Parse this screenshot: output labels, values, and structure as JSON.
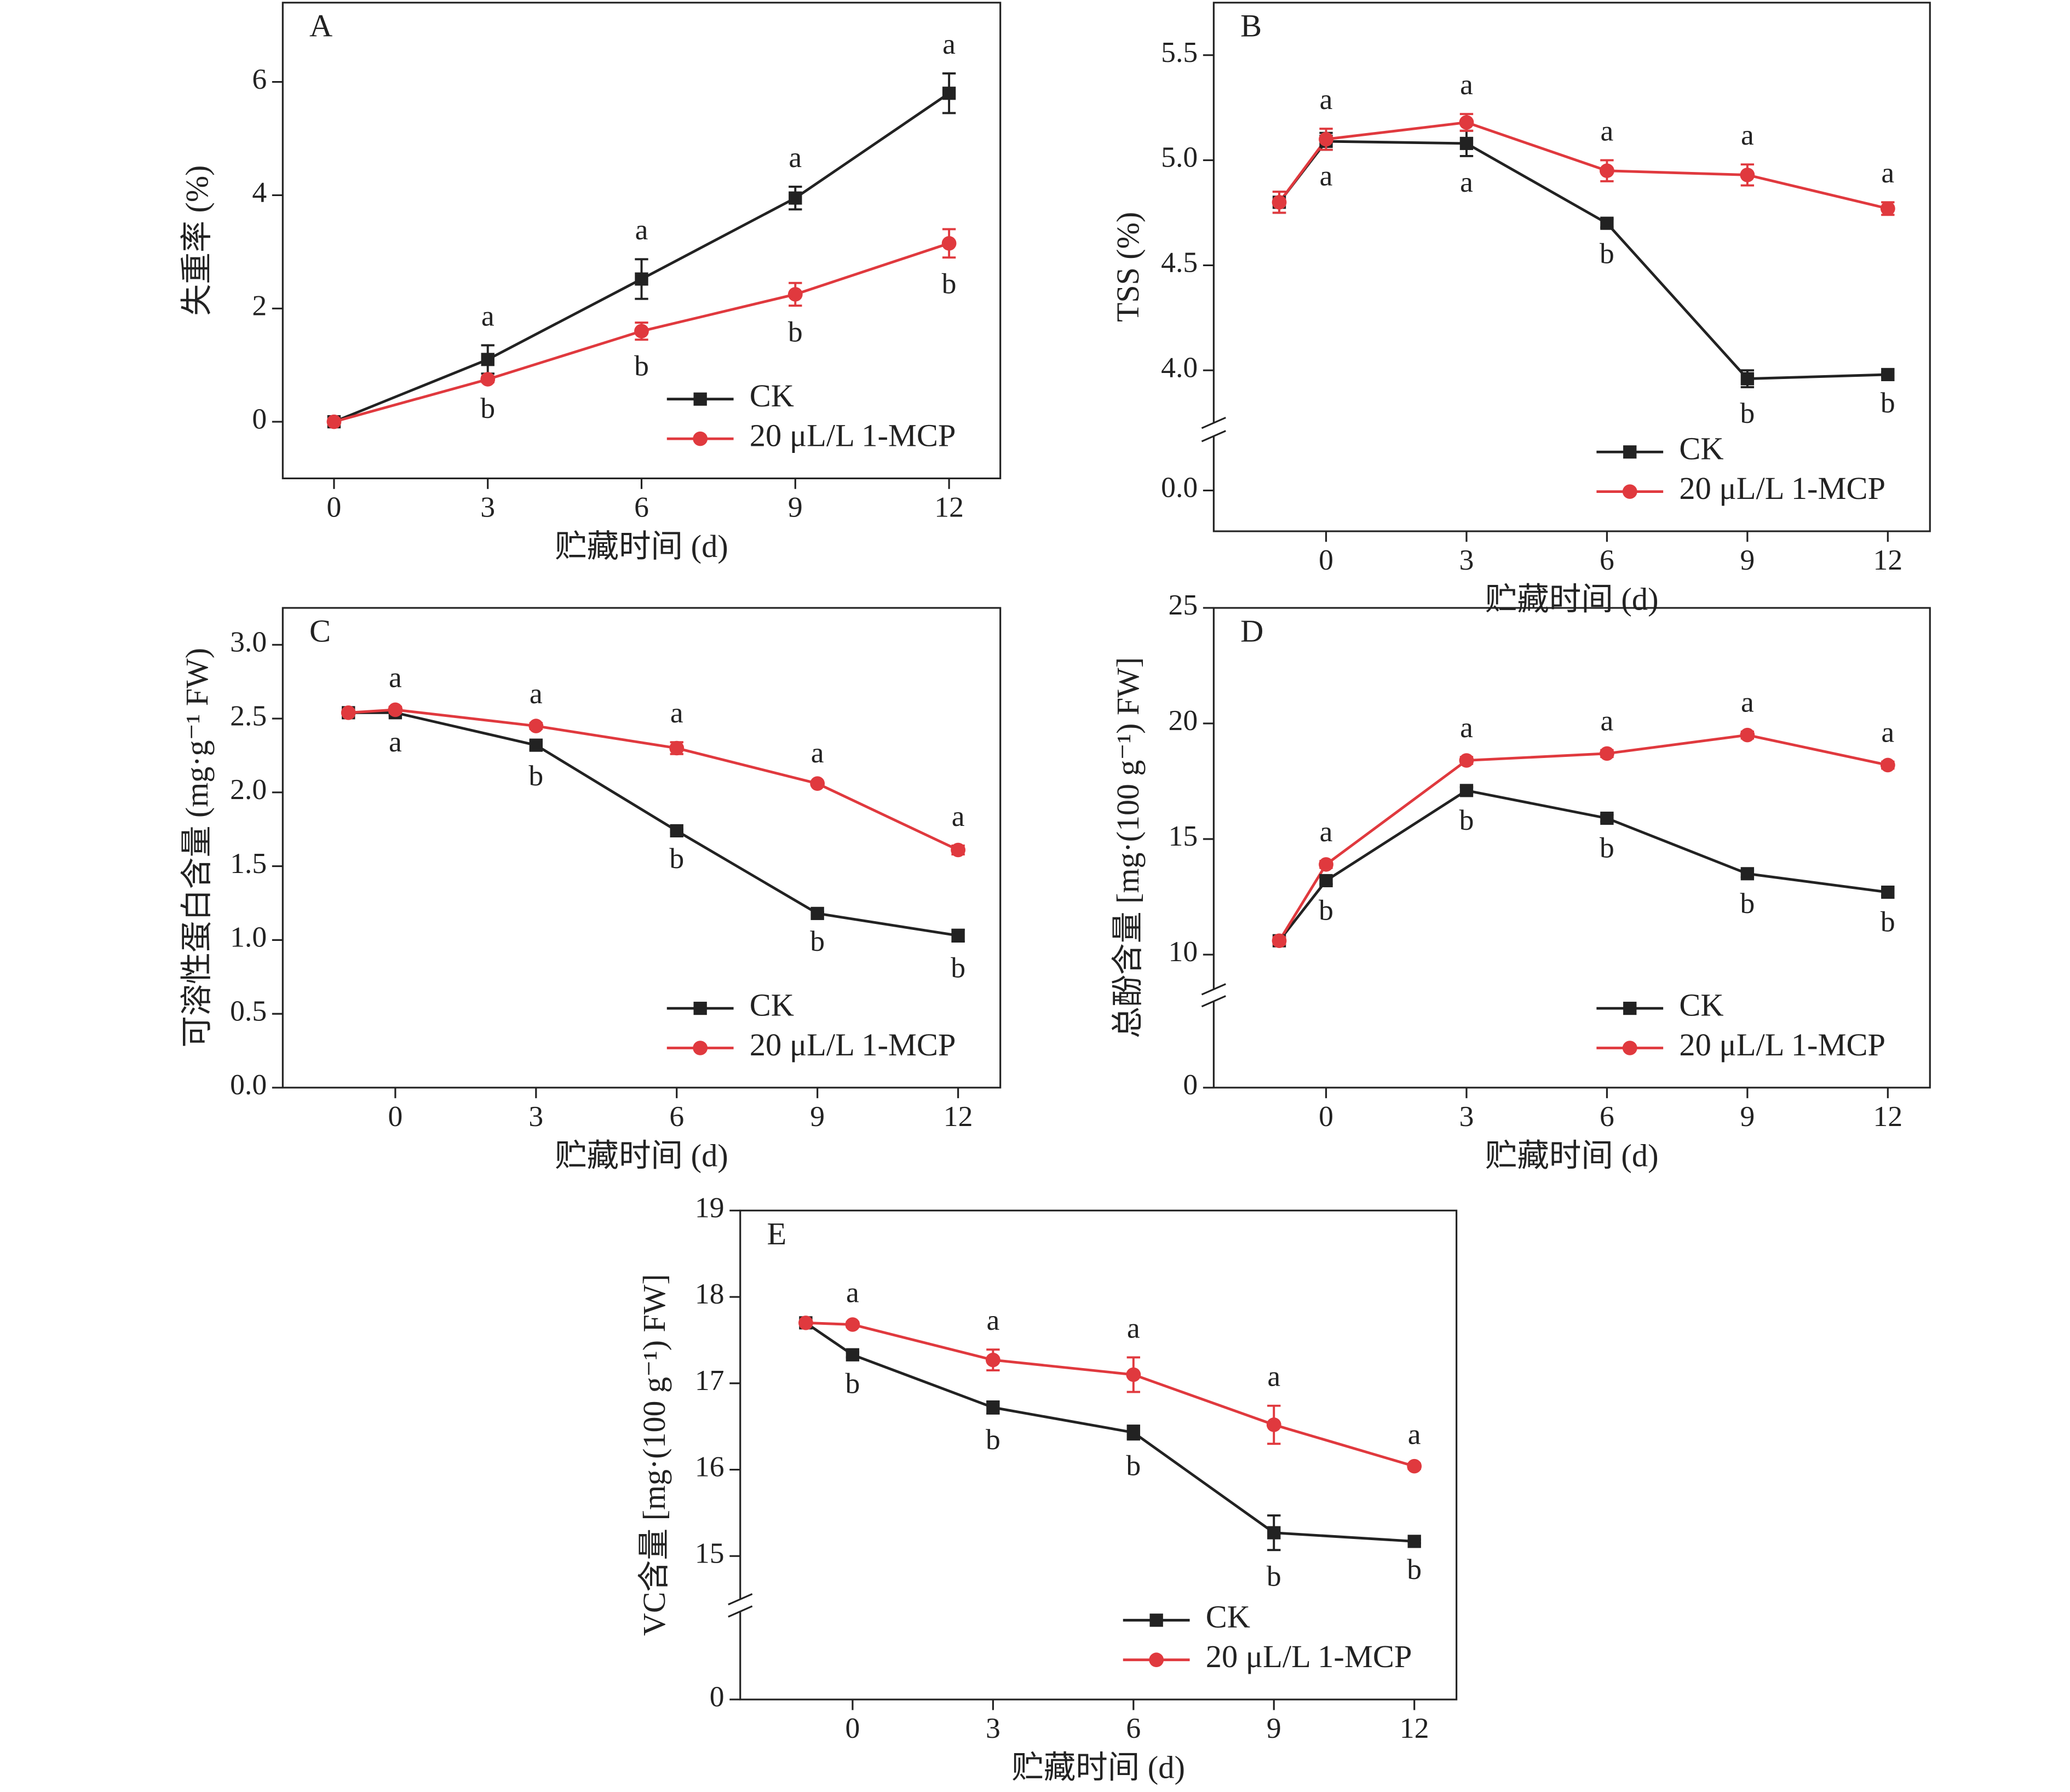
{
  "chart_data": [
    {
      "type": "line",
      "label": "A",
      "x_label": "贮藏时间 (d)",
      "y_label": "失重率 (%)",
      "x": [
        0,
        3,
        6,
        9,
        12
      ],
      "xlim": [
        -1,
        13
      ],
      "xticks": [
        0,
        3,
        6,
        9,
        12
      ],
      "ylim": [
        -1,
        7.4
      ],
      "yticks": [
        0,
        2,
        4,
        6
      ],
      "legend": "lower right",
      "series": [
        {
          "name": "CK",
          "color": "#222222",
          "marker": "square",
          "values": [
            0,
            1.1,
            2.52,
            3.95,
            5.8
          ],
          "errors": [
            0.03,
            0.25,
            0.35,
            0.2,
            0.35
          ],
          "letters": [
            null,
            "a",
            "a",
            "a",
            "a"
          ]
        },
        {
          "name": "20 μL/L 1-MCP",
          "color": "#e0393e",
          "marker": "circle",
          "values": [
            0,
            0.75,
            1.6,
            2.25,
            3.15
          ],
          "errors": [
            0.03,
            0.05,
            0.15,
            0.2,
            0.25
          ],
          "letters": [
            null,
            "b",
            "b",
            "b",
            "b"
          ]
        }
      ]
    },
    {
      "type": "line",
      "label": "B",
      "x_label": "贮藏时间 (d)",
      "y_label": "TSS (%)",
      "x": [
        -1,
        0,
        3,
        6,
        9,
        12
      ],
      "xlim": [
        -2.4,
        12.9
      ],
      "xticks": [
        0,
        3,
        6,
        9,
        12
      ],
      "ylim": [
        -0.3,
        5.75
      ],
      "ybreak": [
        0.4,
        3.75
      ],
      "yticks": [
        {
          "value": 0,
          "label": "0.0"
        },
        {
          "value": 4,
          "label": "4.0"
        },
        4.5,
        {
          "value": 5,
          "label": "5.0"
        },
        5.5
      ],
      "legend": "lower right",
      "series": [
        {
          "name": "CK",
          "color": "#222222",
          "marker": "square",
          "values": [
            4.8,
            5.09,
            5.08,
            4.7,
            3.96,
            3.98
          ],
          "errors": [
            0.05,
            0.04,
            0.06,
            0.02,
            0.04,
            0.01
          ],
          "letters": [
            null,
            "a",
            "a",
            "b",
            "b",
            "b"
          ]
        },
        {
          "name": "20 μL/L 1-MCP",
          "color": "#e0393e",
          "marker": "circle",
          "values": [
            4.8,
            5.1,
            5.18,
            4.95,
            4.93,
            4.77
          ],
          "errors": [
            0.05,
            0.05,
            0.04,
            0.05,
            0.05,
            0.03
          ],
          "letters": [
            null,
            "a",
            "a",
            "a",
            "a",
            "a"
          ]
        }
      ]
    },
    {
      "type": "line",
      "label": "C",
      "x_label": "贮藏时间 (d)",
      "y_label": "可溶性蛋白含量 (mg·g⁻¹ FW)",
      "x": [
        -1,
        0,
        3,
        6,
        9,
        12
      ],
      "xlim": [
        -2.4,
        12.9
      ],
      "xticks": [
        0,
        3,
        6,
        9,
        12
      ],
      "ylim": [
        0,
        3.25
      ],
      "yticks": [
        {
          "value": 0,
          "label": "0.0"
        },
        0.5,
        {
          "value": 1,
          "label": "1.0"
        },
        1.5,
        {
          "value": 2,
          "label": "2.0"
        },
        2.5,
        {
          "value": 3,
          "label": "3.0"
        }
      ],
      "legend": "lower right",
      "series": [
        {
          "name": "CK",
          "color": "#222222",
          "marker": "square",
          "values": [
            2.54,
            2.54,
            2.32,
            1.74,
            1.18,
            1.03
          ],
          "errors": [
            0.01,
            0.02,
            0.03,
            0.01,
            0.01,
            0.04
          ],
          "letters": [
            null,
            "a",
            "b",
            "b",
            "b",
            "b"
          ]
        },
        {
          "name": "20 μL/L 1-MCP",
          "color": "#e0393e",
          "marker": "circle",
          "values": [
            2.54,
            2.56,
            2.45,
            2.3,
            2.06,
            1.61
          ],
          "errors": [
            0.01,
            0.02,
            0.02,
            0.04,
            0.01,
            0.03
          ],
          "letters": [
            null,
            "a",
            "a",
            "a",
            "a",
            "a"
          ]
        }
      ]
    },
    {
      "type": "line",
      "label": "D",
      "x_label": "贮藏时间 (d)",
      "y_label": "总酚含量 [mg·(100 g⁻¹) FW]",
      "x": [
        -1,
        0,
        3,
        6,
        9,
        12
      ],
      "xlim": [
        -2.4,
        12.9
      ],
      "xticks": [
        0,
        3,
        6,
        9,
        12
      ],
      "ylim": [
        0,
        25
      ],
      "ybreak": [
        1,
        8.5
      ],
      "yticks": [
        0,
        10,
        15,
        20,
        25
      ],
      "legend": "lower right",
      "series": [
        {
          "name": "CK",
          "color": "#222222",
          "marker": "square",
          "values": [
            10.6,
            13.2,
            17.1,
            15.9,
            13.5,
            12.7
          ],
          "errors": [
            0.15,
            0.15,
            0.15,
            0.15,
            0.15,
            0.15
          ],
          "letters": [
            null,
            "b",
            "b",
            "b",
            "b",
            "b"
          ]
        },
        {
          "name": "20 μL/L 1-MCP",
          "color": "#e0393e",
          "marker": "circle",
          "values": [
            10.6,
            13.9,
            18.4,
            18.7,
            19.5,
            18.2
          ],
          "errors": [
            0.15,
            0.15,
            0.15,
            0.15,
            0.15,
            0.15
          ],
          "letters": [
            null,
            "a",
            "a",
            "a",
            "a",
            "a"
          ]
        }
      ]
    },
    {
      "type": "line",
      "label": "E",
      "x_label": "贮藏时间 (d)",
      "y_label": "VC含量 [mg·(100 g⁻¹) FW]",
      "x": [
        -1,
        0,
        3,
        6,
        9,
        12
      ],
      "xlim": [
        -2.4,
        12.9
      ],
      "xticks": [
        0,
        3,
        6,
        9,
        12
      ],
      "ylim": [
        0,
        19
      ],
      "ybreak": [
        1,
        14.5
      ],
      "yticks": [
        0,
        15,
        16,
        17,
        18,
        19
      ],
      "legend": "lower right",
      "series": [
        {
          "name": "CK",
          "color": "#222222",
          "marker": "square",
          "values": [
            17.7,
            17.33,
            16.72,
            16.43,
            15.27,
            15.17
          ],
          "errors": [
            0.02,
            0.03,
            0.07,
            0.08,
            0.2,
            0.02
          ],
          "letters": [
            null,
            "b",
            "b",
            "b",
            "b",
            "b"
          ]
        },
        {
          "name": "20 μL/L 1-MCP",
          "color": "#e0393e",
          "marker": "circle",
          "values": [
            17.7,
            17.68,
            17.27,
            17.1,
            16.52,
            16.04
          ],
          "errors": [
            0.02,
            0.03,
            0.12,
            0.2,
            0.22,
            0.03
          ],
          "letters": [
            null,
            "a",
            "a",
            "a",
            "a",
            "a"
          ]
        }
      ]
    }
  ]
}
